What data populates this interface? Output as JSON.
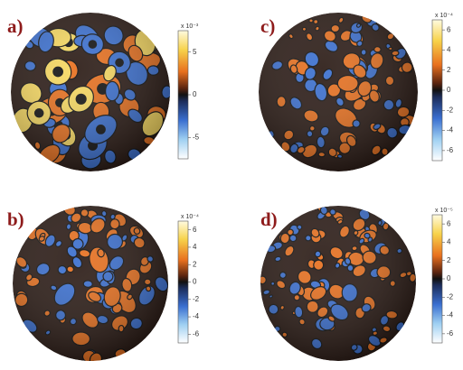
{
  "panels": [
    {
      "label": "a)",
      "exponent": "x 10⁻³",
      "ticks": [
        "5",
        "0",
        "-5"
      ]
    },
    {
      "label": "b)",
      "exponent": "x 10⁻⁴",
      "ticks": [
        "6",
        "4",
        "2",
        "0",
        "-2",
        "-4",
        "-6"
      ]
    },
    {
      "label": "c)",
      "exponent": "x 10⁻⁴",
      "ticks": [
        "6",
        "4",
        "2",
        "0",
        "-2",
        "-4",
        "-6"
      ]
    },
    {
      "label": "d)",
      "exponent": "x 10⁻⁵",
      "ticks": [
        "6",
        "4",
        "2",
        "0",
        "-2",
        "-4",
        "-6"
      ]
    }
  ]
}
